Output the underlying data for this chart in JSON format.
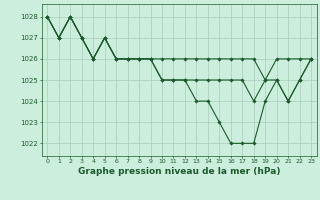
{
  "background_color": "#cceedd",
  "grid_color": "#aaccbb",
  "line_color": "#1a5c2a",
  "marker_color": "#1a5c2a",
  "xlabel": "Graphe pression niveau de la mer (hPa)",
  "xlabel_fontsize": 6.5,
  "ylim": [
    1021.4,
    1028.6
  ],
  "xlim": [
    -0.5,
    23.5
  ],
  "yticks": [
    1022,
    1023,
    1024,
    1025,
    1026,
    1027,
    1028
  ],
  "xtick_labels": [
    "0",
    "1",
    "2",
    "3",
    "4",
    "5",
    "6",
    "7",
    "8",
    "9",
    "10",
    "11",
    "12",
    "13",
    "14",
    "15",
    "16",
    "17",
    "18",
    "19",
    "20",
    "21",
    "22",
    "23"
  ],
  "series": [
    [
      1028,
      1027,
      1028,
      1027,
      1026,
      1027,
      1026,
      1026,
      1026,
      1026,
      1026,
      1026,
      1026,
      1026,
      1026,
      1026,
      1026,
      1026,
      1026,
      1025,
      1026,
      1026,
      1026,
      1026
    ],
    [
      1028,
      1027,
      1028,
      1027,
      1026,
      1027,
      1026,
      1026,
      1026,
      1026,
      1025,
      1025,
      1025,
      1025,
      1025,
      1025,
      1025,
      1025,
      1024,
      1025,
      1025,
      1024,
      1025,
      1026
    ],
    [
      1028,
      1027,
      1028,
      1027,
      1026,
      1027,
      1026,
      1026,
      1026,
      1026,
      1025,
      1025,
      1025,
      1024,
      1024,
      1023,
      1022,
      1022,
      1022,
      1024,
      1025,
      1024,
      1025,
      1026
    ]
  ]
}
